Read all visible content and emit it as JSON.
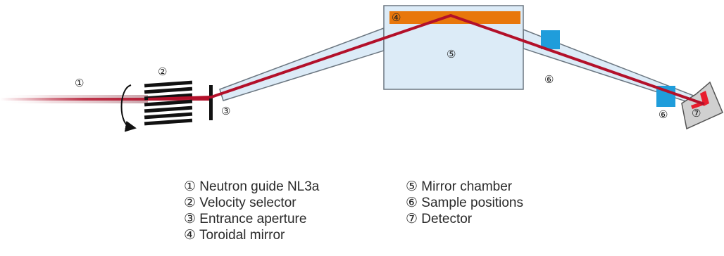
{
  "markers": {
    "m1": "①",
    "m2": "②",
    "m3": "③",
    "m4": "④",
    "m5": "⑤",
    "m6": "⑥",
    "m7": "⑦"
  },
  "legend": {
    "left": [
      "① Neutron guide NL3a",
      "② Velocity selector",
      "③ Entrance aperture",
      "④ Toroidal mirror"
    ],
    "right": [
      "⑤ Mirror chamber",
      "⑥ Sample positions",
      "⑦  Detector"
    ]
  },
  "colors": {
    "beam": "#b3102a",
    "tube_fill": "#dcebf7",
    "tube_stroke": "#6b7680",
    "mirror": "#e8770c",
    "sample": "#1f9ddb",
    "detector": "#d0d0d0",
    "detector_active": "#e81d2d",
    "selector": "#111111"
  },
  "icons": {
    "rotation": "rotation-arrow-icon"
  }
}
